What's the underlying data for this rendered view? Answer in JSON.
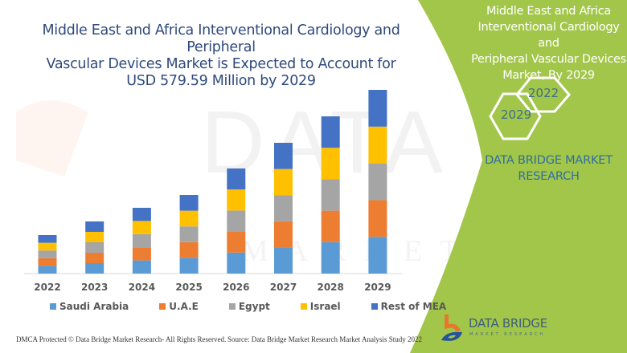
{
  "header": {
    "title_lines": [
      "Middle East and Africa Interventional Cardiology and Peripheral",
      "Vascular Devices Market is Expected to Account for",
      "USD 579.59 Million by 2029"
    ]
  },
  "side_panel": {
    "title_lines": [
      "Middle East and Africa",
      "Interventional Cardiology and",
      "Peripheral Vascular Devices",
      "Market, By 2029"
    ],
    "hex_years": [
      "2022",
      "2029"
    ],
    "brand_lines": [
      "DATA BRIDGE MARKET",
      "RESEARCH"
    ],
    "accent_color": "#a2c64a"
  },
  "watermark": {
    "text_top": "DATA BRIDGE",
    "text_bottom": "MARKET RESEARCH"
  },
  "chart_data": {
    "type": "bar",
    "stacked": true,
    "title": "Middle East and Africa Interventional Cardiology and Peripheral Vascular Devices Market is Expected to Account for USD 579.59 Million by 2029",
    "xlabel": "",
    "ylabel": "",
    "unit": "USD Million (estimated)",
    "categories": [
      "2022",
      "2023",
      "2024",
      "2025",
      "2026",
      "2027",
      "2028",
      "2029"
    ],
    "series": [
      {
        "name": "Saudi Arabia",
        "color": "#5b9bd5",
        "values": [
          24.3,
          32.9,
          41.5,
          49.6,
          66.3,
          82.5,
          99.2,
          115.9
        ]
      },
      {
        "name": "U.A.E",
        "color": "#ed7d31",
        "values": [
          24.3,
          32.9,
          41.5,
          49.6,
          66.3,
          82.5,
          99.2,
          115.9
        ]
      },
      {
        "name": "Egypt",
        "color": "#a5a5a5",
        "values": [
          24.3,
          32.9,
          41.5,
          49.6,
          66.3,
          82.5,
          99.2,
          115.9
        ]
      },
      {
        "name": "Israel",
        "color": "#ffc000",
        "values": [
          24.3,
          32.9,
          41.5,
          49.6,
          66.3,
          82.5,
          99.2,
          115.9
        ]
      },
      {
        "name": "Rest of MEA",
        "color": "#4472c4",
        "values": [
          24.3,
          32.8,
          41.5,
          49.6,
          66.4,
          82.5,
          99.2,
          115.95
        ]
      }
    ],
    "totals": [
      121.5,
      164.5,
      207.5,
      248.0,
      331.6,
      412.5,
      496.0,
      579.59
    ],
    "ylim": [
      0,
      579.59
    ],
    "grid": false,
    "legend_position": "bottom"
  },
  "footer": {
    "copyright": "DMCA Protected © Data Bridge Market Research- All Rights Reserved.",
    "source": "Source: Data Bridge Market Research Market Analysis Study 2022",
    "logo_name": "DATA BRIDGE",
    "logo_sub": "MARKET RESEARCH"
  }
}
